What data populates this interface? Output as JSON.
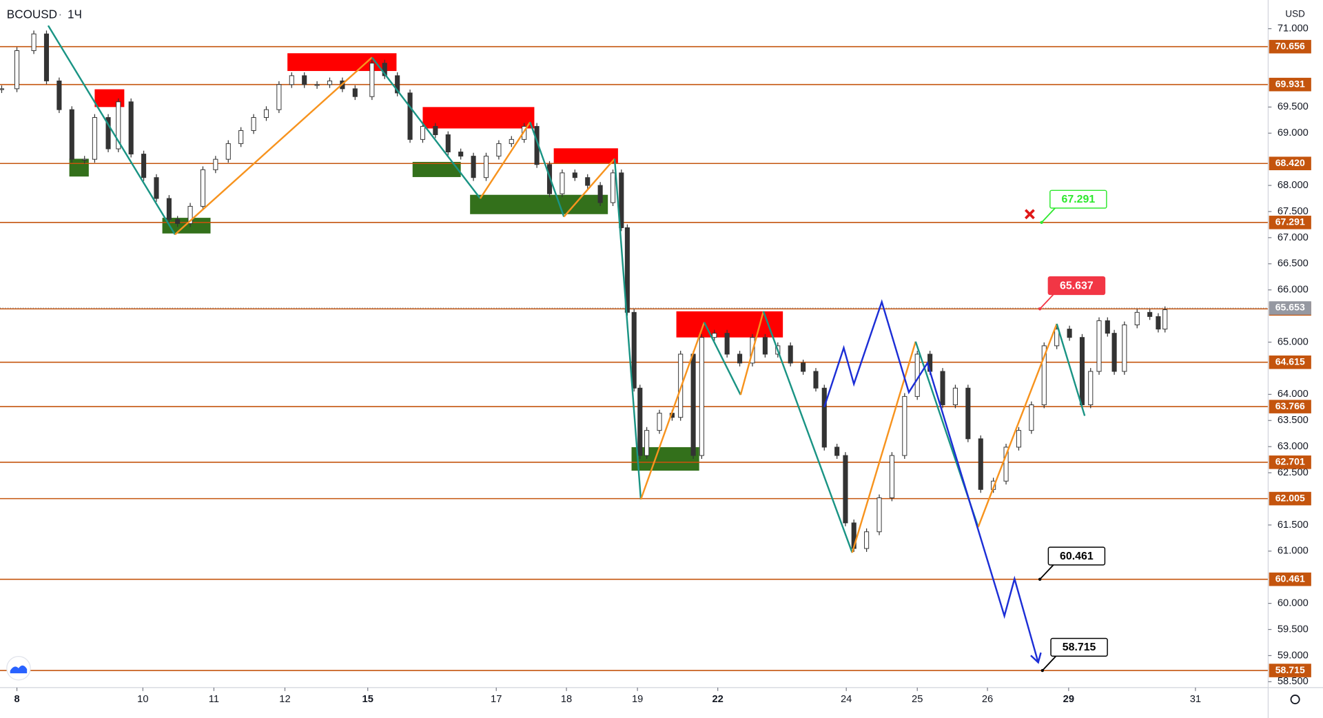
{
  "chart_data": {
    "type": "candlestick",
    "title": "BCOUSD",
    "interval": "1Ч",
    "currency": "USD",
    "xlim": [
      0,
      1500
    ],
    "ylim": [
      58.387,
      71.549
    ],
    "xticks": [
      {
        "value": 20,
        "label": "8"
      },
      {
        "value": 169,
        "label": "10"
      },
      {
        "value": 253,
        "label": "11"
      },
      {
        "value": 337,
        "label": "12"
      },
      {
        "value": 435,
        "label": "15"
      },
      {
        "value": 587,
        "label": "17"
      },
      {
        "value": 670,
        "label": "18"
      },
      {
        "value": 754,
        "label": "19"
      },
      {
        "value": 849,
        "label": "22"
      },
      {
        "value": 1001,
        "label": "24"
      },
      {
        "value": 1085,
        "label": "25"
      },
      {
        "value": 1168,
        "label": "26"
      },
      {
        "value": 1264,
        "label": "29"
      },
      {
        "value": 1414,
        "label": "31"
      }
    ],
    "yticks": [
      {
        "value": 71,
        "label": "71.000"
      },
      {
        "value": 69.5,
        "label": "69.500"
      },
      {
        "value": 69,
        "label": "69.000"
      },
      {
        "value": 68,
        "label": "68.000"
      },
      {
        "value": 67.5,
        "label": "67.500"
      },
      {
        "value": 67,
        "label": "67.000"
      },
      {
        "value": 66.5,
        "label": "66.500"
      },
      {
        "value": 66,
        "label": "66.000"
      },
      {
        "value": 65,
        "label": "65.000"
      },
      {
        "value": 64,
        "label": "64.000"
      },
      {
        "value": 63.5,
        "label": "63.500"
      },
      {
        "value": 63,
        "label": "63.000"
      },
      {
        "value": 62.5,
        "label": "62.500"
      },
      {
        "value": 61.5,
        "label": "61.500"
      },
      {
        "value": 61,
        "label": "61.000"
      },
      {
        "value": 60,
        "label": "60.000"
      },
      {
        "value": 59.5,
        "label": "59.500"
      },
      {
        "value": 59,
        "label": "59.000"
      },
      {
        "value": 58.5,
        "label": "58.500"
      }
    ],
    "prices": {
      "x": [
        2,
        20,
        40,
        55,
        70,
        85,
        100,
        112,
        128,
        140,
        155,
        170,
        185,
        200,
        210,
        225,
        240,
        255,
        270,
        285,
        300,
        315,
        330,
        345,
        360,
        375,
        390,
        405,
        420,
        440,
        455,
        470,
        485,
        500,
        515,
        530,
        545,
        560,
        575,
        590,
        605,
        620,
        635,
        650,
        665,
        680,
        695,
        710,
        725,
        735,
        742,
        750,
        757,
        765,
        780,
        795,
        805,
        820,
        830,
        845,
        860,
        875,
        890,
        905,
        920,
        935,
        950,
        965,
        975,
        990,
        1000,
        1010,
        1025,
        1040,
        1055,
        1070,
        1085,
        1100,
        1115,
        1130,
        1145,
        1160,
        1175,
        1190,
        1205,
        1220,
        1235,
        1250,
        1265,
        1280,
        1290,
        1300,
        1310,
        1318,
        1330,
        1345,
        1360,
        1370,
        1378
      ],
      "values": [
        69.85,
        70.58,
        70.9,
        70.0,
        69.45,
        68.5,
        68.5,
        69.3,
        68.7,
        69.6,
        68.6,
        68.15,
        67.75,
        67.35,
        67.27,
        67.6,
        68.3,
        68.5,
        68.8,
        69.05,
        69.3,
        69.45,
        69.93,
        70.1,
        69.93,
        69.93,
        70.0,
        69.85,
        69.7,
        70.34,
        70.1,
        69.77,
        68.88,
        69.13,
        68.97,
        68.64,
        68.56,
        68.15,
        68.56,
        68.8,
        68.88,
        69.13,
        68.4,
        67.84,
        68.24,
        68.15,
        68.0,
        67.67,
        68.24,
        67.19,
        65.57,
        64.12,
        62.83,
        63.31,
        63.64,
        63.56,
        64.77,
        62.83,
        65.09,
        65.17,
        64.77,
        64.6,
        65.09,
        64.77,
        64.93,
        64.6,
        64.44,
        64.12,
        62.99,
        62.83,
        61.54,
        61.05,
        61.37,
        62.02,
        62.83,
        63.96,
        64.77,
        64.44,
        63.8,
        64.12,
        63.15,
        62.18,
        62.34,
        62.99,
        63.31,
        63.8,
        64.93,
        65.25,
        65.09,
        63.8,
        64.44,
        65.41,
        65.17,
        64.44,
        65.33,
        65.57,
        65.49,
        65.25,
        65.62
      ]
    },
    "current_price": {
      "value": 65.653,
      "label": "65.653",
      "color": "#9598a1"
    },
    "level_color": "#c4540d",
    "levels": [
      {
        "value": 70.656,
        "label": "70.656"
      },
      {
        "value": 69.931,
        "label": "69.931"
      },
      {
        "value": 68.42,
        "label": "68.420"
      },
      {
        "value": 67.291,
        "label": "67.291"
      },
      {
        "value": 65.637,
        "label": "65.637"
      },
      {
        "value": 64.615,
        "label": "64.615"
      },
      {
        "value": 63.766,
        "label": "63.766"
      },
      {
        "value": 62.701,
        "label": "62.701"
      },
      {
        "value": 62.005,
        "label": "62.005"
      },
      {
        "value": 60.461,
        "label": "60.461"
      },
      {
        "value": 58.715,
        "label": "58.715"
      }
    ],
    "zones": [
      {
        "x": [
          112,
          147
        ],
        "y": [
          69.84,
          69.5
        ],
        "color": "#ff0000"
      },
      {
        "x": [
          340,
          469
        ],
        "y": [
          70.53,
          70.19
        ],
        "color": "#ff0000"
      },
      {
        "x": [
          500,
          632
        ],
        "y": [
          69.5,
          69.09
        ],
        "color": "#ff0000"
      },
      {
        "x": [
          655,
          731
        ],
        "y": [
          68.71,
          68.43
        ],
        "color": "#ff0000"
      },
      {
        "x": [
          800,
          926
        ],
        "y": [
          65.59,
          65.09
        ],
        "color": "#ff0000"
      },
      {
        "x": [
          82,
          105
        ],
        "y": [
          68.51,
          68.17
        ],
        "color": "#33701b"
      },
      {
        "x": [
          192,
          249
        ],
        "y": [
          67.38,
          67.08
        ],
        "color": "#33701b"
      },
      {
        "x": [
          488,
          545
        ],
        "y": [
          68.45,
          68.16
        ],
        "color": "#33701b"
      },
      {
        "x": [
          556,
          719
        ],
        "y": [
          67.82,
          67.45
        ],
        "color": "#33701b"
      },
      {
        "x": [
          747,
          827
        ],
        "y": [
          62.99,
          62.54
        ],
        "color": "#33701b"
      }
    ],
    "zigzag": {
      "up_color": "#f7931e",
      "down_color": "#1a9484",
      "x": [
        57,
        207,
        440,
        568,
        627,
        667,
        727,
        758,
        833,
        876,
        903,
        1008,
        1083,
        1157,
        1250,
        1283
      ],
      "values": [
        71.06,
        67.06,
        70.45,
        67.75,
        69.21,
        67.4,
        68.51,
        61.99,
        65.38,
        63.99,
        65.59,
        60.97,
        65.01,
        61.46,
        65.35,
        63.59
      ]
    },
    "projection": {
      "color": "#1c2ed6",
      "x": [
        975,
        998,
        1010,
        1043,
        1075,
        1097,
        1188,
        1200,
        1228
      ],
      "values": [
        63.76,
        64.89,
        64.2,
        65.77,
        64.04,
        64.6,
        59.76,
        60.47,
        58.87
      ]
    },
    "callouts": [
      {
        "x": 1232,
        "y": 67.291,
        "label": "67.291",
        "color": "#2ee82e",
        "filled": false
      },
      {
        "x": 1230,
        "y": 65.637,
        "label": "65.637",
        "color": "#f23645",
        "filled": true
      },
      {
        "x": 1230,
        "y": 60.461,
        "label": "60.461",
        "color": "#000000",
        "filled": false
      },
      {
        "x": 1233,
        "y": 58.715,
        "label": "58.715",
        "color": "#000000",
        "filled": false
      }
    ],
    "markers": [
      {
        "x": 1218,
        "y": 67.45,
        "color": "#e01818"
      }
    ]
  }
}
